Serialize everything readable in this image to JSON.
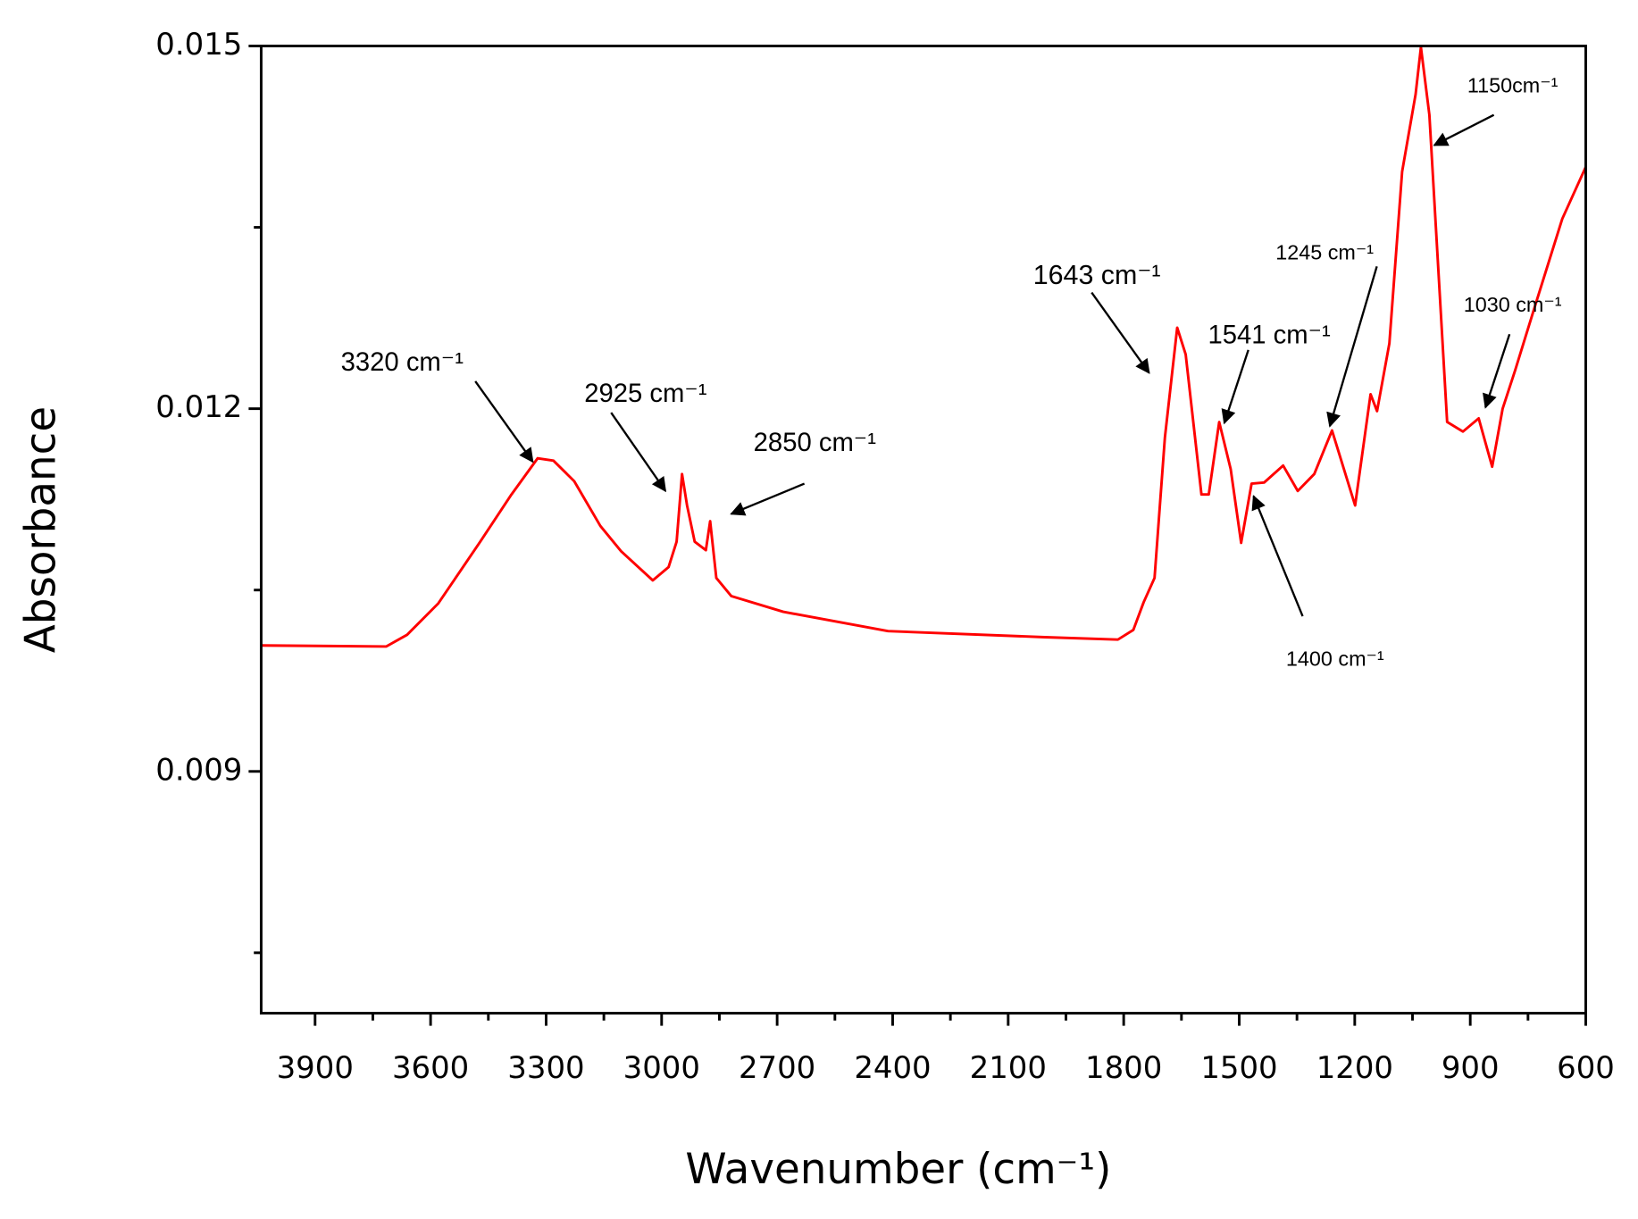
{
  "chart_data": {
    "type": "line",
    "x_label": "Wavenumber (cm⁻¹)",
    "y_label": "Absorbance",
    "color": "#ff0000",
    "xlim": [
      4040,
      600
    ],
    "ylim": [
      0.007,
      0.015
    ],
    "xticks": [
      3900,
      3600,
      3300,
      3000,
      2700,
      2400,
      2100,
      1800,
      1500,
      1200,
      900,
      600
    ],
    "xminorticks": [
      3750,
      3450,
      3150,
      2850,
      2550,
      2250,
      1950,
      1650,
      1350,
      1050,
      750
    ],
    "yticks": [
      0.009,
      0.012,
      0.015
    ],
    "yminorticks": [
      0.0075,
      0.0105,
      0.0135
    ],
    "x": [
      4041,
      3715,
      3661,
      3580,
      3471,
      3390,
      3322,
      3281,
      3227,
      3159,
      3105,
      3023,
      2982,
      2961,
      2947,
      2934,
      2914,
      2885,
      2874,
      2858,
      2819,
      2684,
      2412,
      2005,
      1815,
      1775,
      1748,
      1720,
      1693,
      1661,
      1639,
      1598,
      1579,
      1552,
      1522,
      1495,
      1468,
      1435,
      1386,
      1348,
      1305,
      1259,
      1199,
      1159,
      1142,
      1110,
      1077,
      1042,
      1028,
      1006,
      960,
      919,
      878,
      843,
      816,
      783,
      729,
      661,
      600
    ],
    "values": [
      0.010042,
      0.010033,
      0.01013,
      0.01039,
      0.0109,
      0.01129,
      0.01159,
      0.01157,
      0.0114,
      0.01103,
      0.01082,
      0.01058,
      0.01069,
      0.0109,
      0.01146,
      0.0112,
      0.0109,
      0.01083,
      0.01107,
      0.0106,
      0.01045,
      0.01032,
      0.01016,
      0.01011,
      0.01009,
      0.01017,
      0.0104,
      0.0106,
      0.01176,
      0.01267,
      0.01245,
      0.01129,
      0.01129,
      0.01189,
      0.0115,
      0.01089,
      0.01138,
      0.01139,
      0.01153,
      0.01132,
      0.01146,
      0.01182,
      0.0112,
      0.01212,
      0.01198,
      0.01254,
      0.01396,
      0.0146,
      0.01499,
      0.01443,
      0.01189,
      0.01181,
      0.01192,
      0.01152,
      0.012,
      0.01232,
      0.01288,
      0.01357,
      0.014
    ],
    "annotations": [
      "3320 cm⁻¹",
      "2925 cm⁻¹",
      "2850 cm⁻¹",
      "1643 cm⁻¹",
      "1541 cm⁻¹",
      "1400 cm⁻¹",
      "1245 cm⁻¹",
      "1150cm⁻¹",
      "1030 cm⁻¹"
    ]
  }
}
